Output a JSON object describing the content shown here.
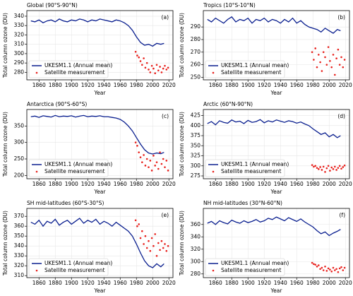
{
  "chart_data": [
    {
      "type": "line",
      "title": "Global (90°S-90°N)",
      "panel_label": "(a)",
      "xlabel": "Year",
      "ylabel": "Total column ozone (DU)",
      "xlim": [
        1845,
        2025
      ],
      "xticks": [
        1860,
        1880,
        1900,
        1920,
        1940,
        1960,
        1980,
        2000,
        2020
      ],
      "ylim": [
        272,
        346
      ],
      "yticks": [
        280,
        290,
        300,
        310,
        320,
        330,
        340
      ],
      "legend": "lower left",
      "series": [
        {
          "name": "UKESM1.1 (Annual mean)",
          "color": "#0a1f8f",
          "type": "line",
          "x": [
            1850,
            1855,
            1860,
            1865,
            1870,
            1875,
            1880,
            1885,
            1890,
            1895,
            1900,
            1905,
            1910,
            1915,
            1920,
            1925,
            1930,
            1935,
            1940,
            1945,
            1950,
            1955,
            1960,
            1965,
            1970,
            1975,
            1980,
            1985,
            1990,
            1995,
            2000,
            2005,
            2010,
            2014
          ],
          "values": [
            335,
            334,
            336,
            333,
            335,
            336,
            334,
            337,
            335,
            334,
            336,
            335,
            337,
            336,
            334,
            336,
            335,
            337,
            336,
            335,
            334,
            336,
            335,
            333,
            330,
            325,
            318,
            312,
            309,
            310,
            308,
            311,
            310,
            311
          ]
        },
        {
          "name": "Satellite measurement",
          "color": "#e8201c",
          "type": "scatter",
          "x": [
            1979,
            1981,
            1983,
            1985,
            1987,
            1989,
            1991,
            1993,
            1995,
            1997,
            1999,
            2001,
            2003,
            2005,
            2007,
            2009,
            2011,
            2013,
            2015,
            2017,
            2019
          ],
          "values": [
            302,
            298,
            296,
            292,
            288,
            295,
            285,
            290,
            283,
            280,
            287,
            284,
            279,
            288,
            282,
            286,
            280,
            284,
            287,
            283,
            285
          ]
        }
      ]
    },
    {
      "type": "line",
      "title": "Tropics (10°S-10°N)",
      "panel_label": "(b)",
      "xlabel": "Year",
      "ylabel": "Total column ozone (DU)",
      "xlim": [
        1845,
        2025
      ],
      "xticks": [
        1860,
        1880,
        1900,
        1920,
        1940,
        1960,
        1980,
        2000,
        2020
      ],
      "ylim": [
        248,
        303
      ],
      "yticks": [
        250,
        260,
        270,
        280,
        290
      ],
      "legend": "lower left",
      "series": [
        {
          "name": "UKESM1.1 (Annual mean)",
          "color": "#0a1f8f",
          "type": "line",
          "x": [
            1850,
            1855,
            1860,
            1865,
            1870,
            1875,
            1880,
            1885,
            1890,
            1895,
            1900,
            1905,
            1910,
            1915,
            1920,
            1925,
            1930,
            1935,
            1940,
            1945,
            1950,
            1955,
            1960,
            1965,
            1970,
            1975,
            1980,
            1985,
            1990,
            1995,
            2000,
            2005,
            2010,
            2014
          ],
          "values": [
            296,
            294,
            297,
            295,
            293,
            296,
            298,
            294,
            296,
            295,
            297,
            293,
            296,
            295,
            297,
            294,
            296,
            295,
            293,
            296,
            294,
            297,
            293,
            295,
            292,
            290,
            289,
            288,
            286,
            289,
            287,
            285,
            288,
            287
          ]
        },
        {
          "name": "Satellite measurement",
          "color": "#e8201c",
          "type": "scatter",
          "x": [
            1979,
            1981,
            1983,
            1985,
            1987,
            1989,
            1991,
            1993,
            1995,
            1997,
            1999,
            2001,
            2003,
            2005,
            2007,
            2009,
            2011,
            2013,
            2015,
            2017,
            2019
          ],
          "values": [
            270,
            264,
            273,
            258,
            268,
            262,
            255,
            270,
            266,
            260,
            274,
            263,
            258,
            268,
            252,
            265,
            272,
            260,
            266,
            258,
            264
          ]
        }
      ]
    },
    {
      "type": "line",
      "title": "Antarctica (90°S-60°S)",
      "panel_label": "(c)",
      "xlabel": "Year",
      "ylabel": "Total column ozone (DU)",
      "xlim": [
        1845,
        2025
      ],
      "xticks": [
        1860,
        1880,
        1900,
        1920,
        1940,
        1960,
        1980,
        2000,
        2020
      ],
      "ylim": [
        190,
        400
      ],
      "yticks": [
        200,
        250,
        300,
        350
      ],
      "legend": "lower left",
      "series": [
        {
          "name": "UKESM1.1 (Annual mean)",
          "color": "#0a1f8f",
          "type": "line",
          "x": [
            1850,
            1855,
            1860,
            1865,
            1870,
            1875,
            1880,
            1885,
            1890,
            1895,
            1900,
            1905,
            1910,
            1915,
            1920,
            1925,
            1930,
            1935,
            1940,
            1945,
            1950,
            1955,
            1960,
            1965,
            1970,
            1975,
            1980,
            1985,
            1990,
            1995,
            2000,
            2005,
            2010,
            2014
          ],
          "values": [
            378,
            380,
            376,
            381,
            379,
            377,
            382,
            378,
            380,
            379,
            381,
            377,
            380,
            382,
            378,
            380,
            379,
            381,
            378,
            378,
            376,
            374,
            370,
            362,
            350,
            335,
            315,
            295,
            278,
            268,
            265,
            268,
            266,
            270
          ]
        },
        {
          "name": "Satellite measurement",
          "color": "#e8201c",
          "type": "scatter",
          "x": [
            1979,
            1981,
            1983,
            1985,
            1987,
            1989,
            1991,
            1993,
            1995,
            1997,
            1999,
            2001,
            2003,
            2005,
            2007,
            2009,
            2011,
            2013,
            2015,
            2017,
            2019
          ],
          "values": [
            300,
            290,
            270,
            255,
            240,
            262,
            230,
            250,
            225,
            245,
            215,
            260,
            230,
            240,
            220,
            270,
            235,
            250,
            225,
            245,
            215
          ]
        }
      ]
    },
    {
      "type": "line",
      "title": "Arctic (60°N-90°N)",
      "panel_label": "(d)",
      "xlabel": "Year",
      "ylabel": "Total column ozone (DU)",
      "xlim": [
        1845,
        2025
      ],
      "xticks": [
        1860,
        1880,
        1900,
        1920,
        1940,
        1960,
        1980,
        2000,
        2020
      ],
      "ylim": [
        268,
        440
      ],
      "yticks": [
        275,
        300,
        325,
        350,
        375,
        400,
        425
      ],
      "legend": "lower left",
      "series": [
        {
          "name": "UKESM1.1 (Annual mean)",
          "color": "#0a1f8f",
          "type": "line",
          "x": [
            1850,
            1855,
            1860,
            1865,
            1870,
            1875,
            1880,
            1885,
            1890,
            1895,
            1900,
            1905,
            1910,
            1915,
            1920,
            1925,
            1930,
            1935,
            1940,
            1945,
            1950,
            1955,
            1960,
            1965,
            1970,
            1975,
            1980,
            1985,
            1990,
            1995,
            2000,
            2005,
            2010,
            2014
          ],
          "values": [
            405,
            410,
            402,
            412,
            408,
            406,
            414,
            409,
            411,
            405,
            413,
            408,
            410,
            415,
            407,
            412,
            409,
            414,
            411,
            408,
            412,
            410,
            406,
            409,
            404,
            400,
            392,
            385,
            378,
            382,
            372,
            378,
            370,
            375
          ]
        },
        {
          "name": "Satellite measurement",
          "color": "#e8201c",
          "type": "scatter",
          "x": [
            1979,
            1981,
            1983,
            1985,
            1987,
            1989,
            1991,
            1993,
            1995,
            1997,
            1999,
            2001,
            2003,
            2005,
            2007,
            2009,
            2011,
            2013,
            2015,
            2017,
            2019
          ],
          "values": [
            302,
            298,
            300,
            295,
            292,
            297,
            290,
            298,
            285,
            294,
            300,
            288,
            296,
            292,
            298,
            290,
            295,
            300,
            293,
            297,
            301
          ]
        }
      ]
    },
    {
      "type": "line",
      "title": "SH mid-latitudes (60°S-30°S)",
      "panel_label": "(e)",
      "xlabel": "Year",
      "ylabel": "Total column ozone (DU)",
      "xlim": [
        1845,
        2025
      ],
      "xticks": [
        1860,
        1880,
        1900,
        1920,
        1940,
        1960,
        1980,
        2000,
        2020
      ],
      "ylim": [
        308,
        378
      ],
      "yticks": [
        310,
        320,
        330,
        340,
        350,
        360,
        370
      ],
      "legend": "lower left",
      "series": [
        {
          "name": "UKESM1.1 (Annual mean)",
          "color": "#0a1f8f",
          "type": "line",
          "x": [
            1850,
            1855,
            1860,
            1865,
            1870,
            1875,
            1880,
            1885,
            1890,
            1895,
            1900,
            1905,
            1910,
            1915,
            1920,
            1925,
            1930,
            1935,
            1940,
            1945,
            1950,
            1955,
            1960,
            1965,
            1970,
            1975,
            1980,
            1985,
            1990,
            1995,
            2000,
            2005,
            2010,
            2014
          ],
          "values": [
            364,
            362,
            366,
            360,
            365,
            363,
            367,
            361,
            364,
            366,
            362,
            365,
            368,
            363,
            366,
            364,
            367,
            362,
            365,
            363,
            360,
            364,
            361,
            358,
            355,
            350,
            342,
            333,
            325,
            320,
            318,
            322,
            319,
            322
          ]
        },
        {
          "name": "Satellite measurement",
          "color": "#e8201c",
          "type": "scatter",
          "x": [
            1979,
            1981,
            1983,
            1985,
            1987,
            1989,
            1991,
            1993,
            1995,
            1997,
            1999,
            2001,
            2003,
            2005,
            2007,
            2009,
            2011,
            2013,
            2015,
            2017,
            2019
          ],
          "values": [
            366,
            360,
            362,
            348,
            355,
            342,
            350,
            338,
            345,
            335,
            348,
            340,
            352,
            330,
            343,
            336,
            345,
            338,
            342,
            335,
            340
          ]
        }
      ]
    },
    {
      "type": "line",
      "title": "NH mid-latitudes (30°N-60°N)",
      "panel_label": "(f)",
      "xlabel": "Year",
      "ylabel": "Total column ozone (DU)",
      "xlim": [
        1845,
        2025
      ],
      "xticks": [
        1860,
        1880,
        1900,
        1920,
        1940,
        1960,
        1980,
        2000,
        2020
      ],
      "ylim": [
        274,
        386
      ],
      "yticks": [
        280,
        300,
        320,
        340,
        360
      ],
      "legend": "lower left",
      "series": [
        {
          "name": "UKESM1.1 (Annual mean)",
          "color": "#0a1f8f",
          "type": "line",
          "x": [
            1850,
            1855,
            1860,
            1865,
            1870,
            1875,
            1880,
            1885,
            1890,
            1895,
            1900,
            1905,
            1910,
            1915,
            1920,
            1925,
            1930,
            1935,
            1940,
            1945,
            1950,
            1955,
            1960,
            1965,
            1970,
            1975,
            1980,
            1985,
            1990,
            1995,
            2000,
            2005,
            2010,
            2014
          ],
          "values": [
            362,
            365,
            360,
            366,
            363,
            361,
            367,
            364,
            362,
            366,
            363,
            365,
            368,
            364,
            366,
            370,
            368,
            372,
            369,
            366,
            371,
            368,
            365,
            369,
            364,
            360,
            356,
            350,
            345,
            348,
            342,
            346,
            349,
            352
          ]
        },
        {
          "name": "Satellite measurement",
          "color": "#e8201c",
          "type": "scatter",
          "x": [
            1979,
            1981,
            1983,
            1985,
            1987,
            1989,
            1991,
            1993,
            1995,
            1997,
            1999,
            2001,
            2003,
            2005,
            2007,
            2009,
            2011,
            2013,
            2015,
            2017,
            2019
          ],
          "values": [
            298,
            296,
            295,
            292,
            294,
            288,
            290,
            286,
            292,
            285,
            289,
            287,
            284,
            290,
            286,
            288,
            283,
            289,
            291,
            286,
            290
          ]
        }
      ]
    }
  ]
}
